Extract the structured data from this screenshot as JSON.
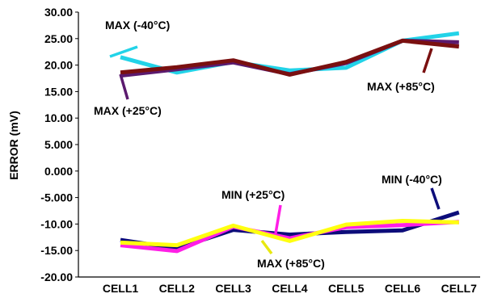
{
  "chart_data": {
    "type": "line",
    "ylabel": "ERROR (mV)",
    "ylim": [
      -20,
      30
    ],
    "ytick_labels": [
      "30.00",
      "25.00",
      "20.00",
      "15.00",
      "10.00",
      "5.000",
      "0.000",
      "-5.000",
      "-10.00",
      "-15.00",
      "-20.00"
    ],
    "categories": [
      "CELL1",
      "CELL2",
      "CELL3",
      "CELL4",
      "CELL5",
      "CELL6",
      "CELL7"
    ],
    "grid": false,
    "series": [
      {
        "name": "MAX (-40°C)",
        "color": "#22d3e8",
        "values": [
          21.5,
          18.6,
          20.6,
          19.0,
          19.5,
          24.6,
          26.0
        ]
      },
      {
        "name": "MAX (+25°C)",
        "color": "#5b1a6e",
        "values": [
          18.0,
          19.2,
          20.5,
          18.3,
          20.4,
          24.6,
          24.3
        ]
      },
      {
        "name": "MAX (+85°C)",
        "color": "#7a1010",
        "values": [
          18.6,
          19.6,
          20.9,
          18.2,
          20.6,
          24.6,
          23.5
        ]
      },
      {
        "name": "MIN (-40°C)",
        "color": "#0d0d7a",
        "values": [
          -13.0,
          -14.6,
          -11.1,
          -12.0,
          -11.5,
          -11.2,
          -7.8
        ]
      },
      {
        "name": "MIN (+25°C)",
        "color": "#ff1ee6",
        "values": [
          -14.0,
          -15.1,
          -10.5,
          -12.7,
          -10.6,
          -10.2,
          -9.6
        ]
      },
      {
        "name": "MAX (+85°C)",
        "color": "#ffff10",
        "values": [
          -13.5,
          -14.0,
          -10.3,
          -13.2,
          -10.1,
          -9.4,
          -9.7
        ]
      }
    ],
    "annotations": [
      {
        "label": "MAX (-40°C)",
        "color": "#22d3e8"
      },
      {
        "label": "MAX (+25°C)",
        "color": "#5b1a6e"
      },
      {
        "label": "MAX (+85°C)",
        "color": "#7a1010"
      },
      {
        "label": "MIN (-40°C)",
        "color": "#0d0d7a"
      },
      {
        "label": "MIN (+25°C)",
        "color": "#ff1ee6"
      },
      {
        "label": "MAX (+85°C)",
        "color": "#e8e810"
      }
    ]
  }
}
